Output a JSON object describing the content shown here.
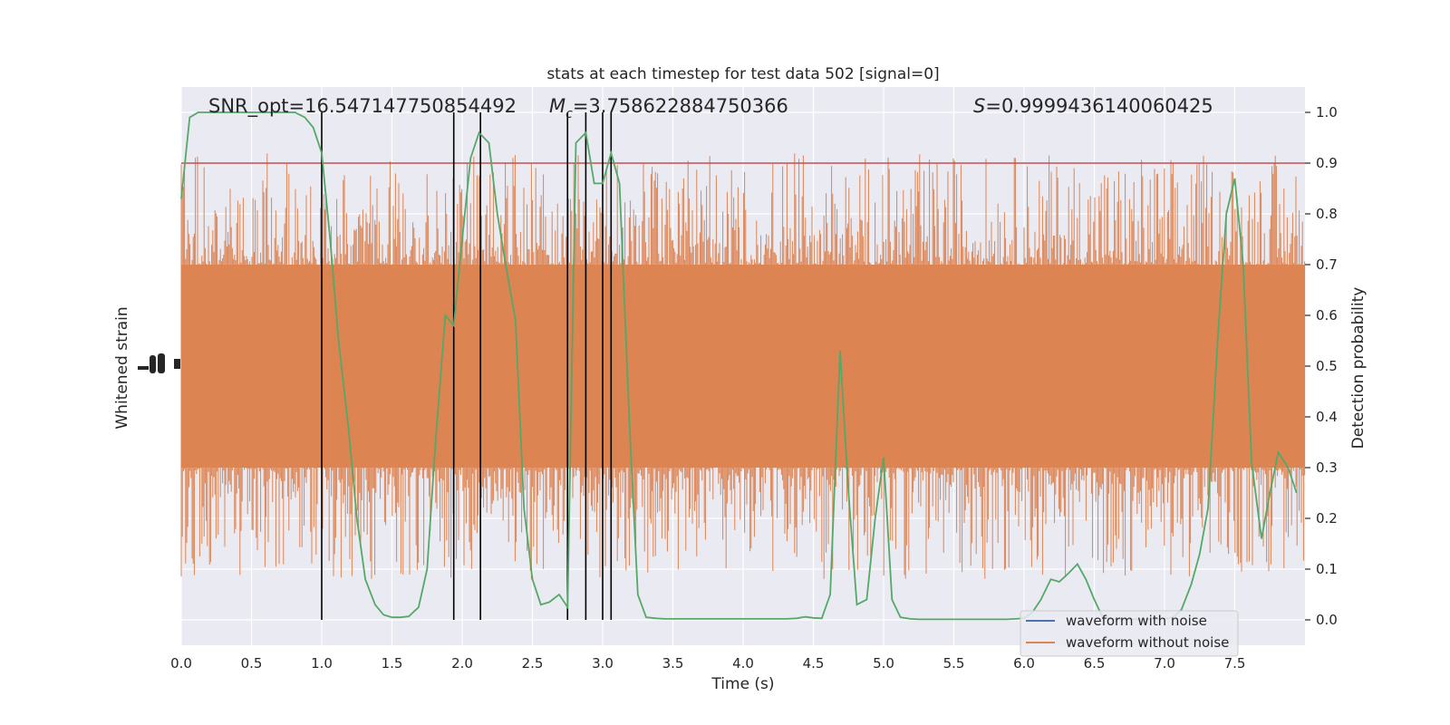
{
  "chart_data": {
    "type": "line",
    "title": "stats at each timestep for test data 502 [signal=0]",
    "xlabel": "Time (s)",
    "ylabel_left": "Whitened strain",
    "ylabel_right": "Detection probability",
    "xlim": [
      0.0,
      8.0
    ],
    "ylim_right": [
      -0.05,
      1.05
    ],
    "x_ticks": [
      "0.0",
      "0.5",
      "1.0",
      "1.5",
      "2.0",
      "2.5",
      "3.0",
      "3.5",
      "4.0",
      "4.5",
      "5.0",
      "5.5",
      "6.0",
      "6.5",
      "7.0",
      "7.5"
    ],
    "x_tick_values": [
      0.0,
      0.5,
      1.0,
      1.5,
      2.0,
      2.5,
      3.0,
      3.5,
      4.0,
      4.5,
      5.0,
      5.5,
      6.0,
      6.5,
      7.0,
      7.5
    ],
    "y_ticks_right": [
      "0.0",
      "0.1",
      "0.2",
      "0.3",
      "0.4",
      "0.5",
      "0.6",
      "0.7",
      "0.8",
      "0.9",
      "1.0"
    ],
    "y_tick_values_right": [
      0.0,
      0.1,
      0.2,
      0.3,
      0.4,
      0.5,
      0.6,
      0.7,
      0.8,
      0.9,
      1.0
    ],
    "grid": true,
    "legend_position": "bottom-right",
    "annotations": {
      "snr": "SNR_opt=16.547147750854492",
      "mc_symbol": "M",
      "mc_sub": "c",
      "mc_value": "=3.758622884750366",
      "s_symbol": "S",
      "s_value": "=0.9999436140060425"
    },
    "threshold": 0.9,
    "detection_times": [
      1.0,
      1.94,
      2.13,
      2.75,
      2.88,
      3.0,
      3.06
    ],
    "series": [
      {
        "name": "waveform with noise",
        "color": "#4c72b0"
      },
      {
        "name": "waveform without noise",
        "color": "#dd8452"
      }
    ],
    "detection_probability": {
      "color": "#55a868",
      "x": [
        0.0,
        0.06,
        0.12,
        0.19,
        0.25,
        0.31,
        0.38,
        0.44,
        0.5,
        0.56,
        0.62,
        0.69,
        0.75,
        0.81,
        0.88,
        0.94,
        1.0,
        1.06,
        1.12,
        1.19,
        1.25,
        1.31,
        1.38,
        1.44,
        1.5,
        1.56,
        1.62,
        1.69,
        1.75,
        1.81,
        1.88,
        1.94,
        2.0,
        2.06,
        2.12,
        2.19,
        2.25,
        2.31,
        2.38,
        2.44,
        2.5,
        2.56,
        2.62,
        2.69,
        2.75,
        2.81,
        2.88,
        2.94,
        3.0,
        3.06,
        3.12,
        3.19,
        3.25,
        3.31,
        3.38,
        3.44,
        3.5,
        3.56,
        3.62,
        3.69,
        3.75,
        3.81,
        3.88,
        3.94,
        4.0,
        4.06,
        4.12,
        4.19,
        4.25,
        4.31,
        4.38,
        4.44,
        4.5,
        4.56,
        4.62,
        4.69,
        4.75,
        4.81,
        4.88,
        4.94,
        5.0,
        5.06,
        5.12,
        5.19,
        5.25,
        5.31,
        5.38,
        5.44,
        5.5,
        5.56,
        5.62,
        5.69,
        5.75,
        5.81,
        5.88,
        5.94,
        6.0,
        6.06,
        6.12,
        6.19,
        6.25,
        6.31,
        6.38,
        6.44,
        6.5,
        6.56,
        6.62,
        6.69,
        6.75,
        6.81,
        6.88,
        6.94,
        7.0,
        7.06,
        7.12,
        7.19,
        7.25,
        7.31,
        7.38,
        7.44,
        7.5,
        7.56,
        7.62,
        7.69,
        7.75,
        7.81,
        7.88,
        7.94
      ],
      "y": [
        0.83,
        0.99,
        1.0,
        1.0,
        1.0,
        1.0,
        1.0,
        1.0,
        1.0,
        1.0,
        1.0,
        1.0,
        1.0,
        1.0,
        0.99,
        0.97,
        0.92,
        0.75,
        0.55,
        0.38,
        0.2,
        0.08,
        0.03,
        0.01,
        0.005,
        0.005,
        0.007,
        0.025,
        0.1,
        0.35,
        0.6,
        0.58,
        0.75,
        0.91,
        0.96,
        0.94,
        0.8,
        0.7,
        0.59,
        0.22,
        0.08,
        0.03,
        0.035,
        0.05,
        0.025,
        0.94,
        0.96,
        0.86,
        0.86,
        0.92,
        0.86,
        0.39,
        0.05,
        0.005,
        0.003,
        0.002,
        0.002,
        0.002,
        0.002,
        0.002,
        0.002,
        0.002,
        0.002,
        0.002,
        0.002,
        0.002,
        0.002,
        0.002,
        0.002,
        0.002,
        0.003,
        0.006,
        0.004,
        0.003,
        0.05,
        0.53,
        0.25,
        0.03,
        0.04,
        0.2,
        0.32,
        0.04,
        0.005,
        0.002,
        0.001,
        0.001,
        0.001,
        0.001,
        0.001,
        0.001,
        0.001,
        0.001,
        0.001,
        0.001,
        0.001,
        0.002,
        0.003,
        0.015,
        0.04,
        0.08,
        0.075,
        0.09,
        0.11,
        0.08,
        0.04,
        0.005,
        0.002,
        0.001,
        0.001,
        0.001,
        0.001,
        0.001,
        0.002,
        0.005,
        0.02,
        0.07,
        0.13,
        0.22,
        0.56,
        0.8,
        0.87,
        0.7,
        0.31,
        0.16,
        0.25,
        0.33,
        0.3,
        0.25
      ]
    }
  }
}
